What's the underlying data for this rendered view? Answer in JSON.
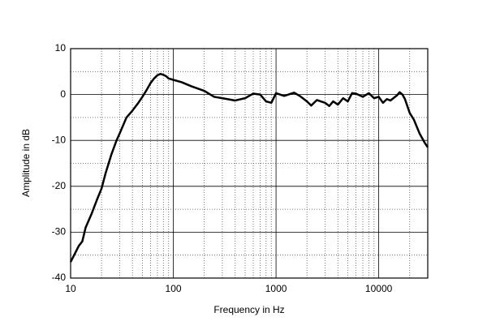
{
  "chart_data": {
    "type": "line",
    "xlabel": "Frequency in Hz",
    "ylabel": "Amplitude in dB",
    "xscale": "log",
    "xlim": [
      10,
      30000
    ],
    "ylim": [
      -40,
      10
    ],
    "xticks": [
      10,
      100,
      1000,
      10000
    ],
    "yticks": [
      -40,
      -30,
      -20,
      -10,
      0,
      10
    ],
    "xminor": [
      20,
      30,
      40,
      50,
      60,
      70,
      80,
      90,
      200,
      300,
      400,
      500,
      600,
      700,
      800,
      900,
      2000,
      3000,
      4000,
      5000,
      6000,
      7000,
      8000,
      9000,
      20000
    ],
    "yminor": [
      -35,
      -25,
      -15,
      -5,
      5
    ],
    "grid": true,
    "x": [
      10,
      12,
      13,
      14,
      16,
      18,
      20,
      22,
      25,
      28,
      30,
      35,
      40,
      45,
      50,
      55,
      60,
      65,
      70,
      75,
      80,
      85,
      90,
      100,
      120,
      150,
      200,
      250,
      300,
      400,
      500,
      600,
      700,
      800,
      900,
      1000,
      1200,
      1500,
      1700,
      2000,
      2200,
      2500,
      3000,
      3300,
      3600,
      4000,
      4500,
      5000,
      5500,
      6000,
      7000,
      8000,
      9000,
      10000,
      11000,
      12000,
      13000,
      15000,
      16000,
      17000,
      18000,
      20000,
      22000,
      25000,
      28000,
      30000
    ],
    "series": [
      {
        "color": "#000000",
        "values": [
          -36.5,
          -33,
          -32,
          -29,
          -26,
          -23,
          -20.5,
          -17,
          -13,
          -10,
          -8.5,
          -5,
          -3.5,
          -2,
          -0.5,
          1,
          2.5,
          3.5,
          4.2,
          4.5,
          4.3,
          4,
          3.5,
          3.2,
          2.7,
          1.8,
          0.8,
          -0.5,
          -0.8,
          -1.3,
          -0.8,
          0.2,
          0,
          -1.5,
          -1.8,
          0.3,
          -0.3,
          0.4,
          -0.3,
          -1.5,
          -2.4,
          -1.2,
          -1.8,
          -2.5,
          -1.5,
          -2.2,
          -0.8,
          -1.5,
          0.3,
          0.2,
          -0.5,
          0.3,
          -0.8,
          -0.5,
          -1.8,
          -1,
          -1.3,
          -0.2,
          0.5,
          0,
          -1,
          -4,
          -5.5,
          -8.5,
          -10.5,
          -11.5
        ]
      }
    ]
  }
}
